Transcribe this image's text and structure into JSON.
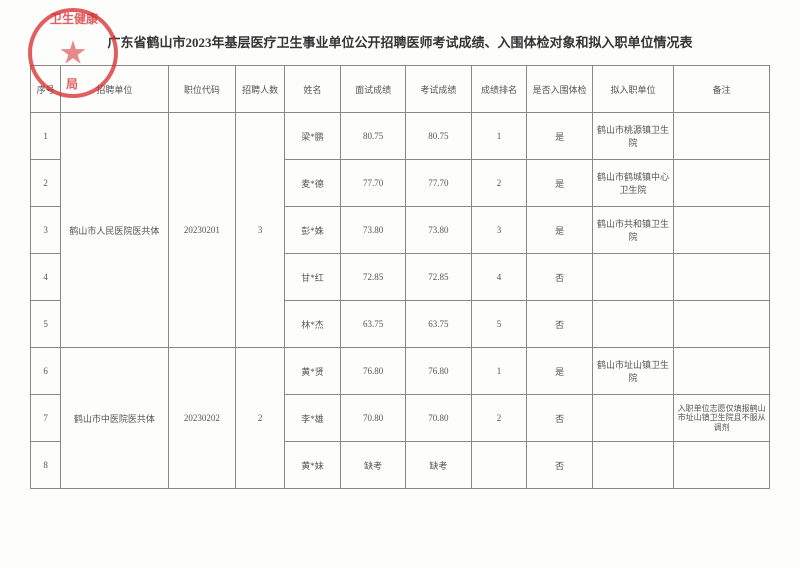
{
  "title": "广东省鹤山市2023年基层医疗卫生事业单位公开招聘医师考试成绩、入围体检对象和拟入职单位情况表",
  "headers": {
    "seq": "序号",
    "org": "招聘单位",
    "code": "职位代码",
    "num": "招聘人数",
    "name": "姓名",
    "score1": "面试成绩",
    "score2": "考试成绩",
    "rank": "成绩排名",
    "pass": "是否入围体检",
    "unit": "拟入职单位",
    "note": "备注"
  },
  "groups": [
    {
      "org": "鹤山市人民医院医共体",
      "code": "20230201",
      "num": "3",
      "rows": [
        {
          "seq": "1",
          "name": "梁*鹏",
          "s1": "80.75",
          "s2": "80.75",
          "rank": "1",
          "pass": "是",
          "unit": "鹤山市桃源镇卫生院",
          "note": ""
        },
        {
          "seq": "2",
          "name": "麦*德",
          "s1": "77.70",
          "s2": "77.70",
          "rank": "2",
          "pass": "是",
          "unit": "鹤山市鹤城镇中心卫生院",
          "note": ""
        },
        {
          "seq": "3",
          "name": "彭*姝",
          "s1": "73.80",
          "s2": "73.80",
          "rank": "3",
          "pass": "是",
          "unit": "鹤山市共和镇卫生院",
          "note": ""
        },
        {
          "seq": "4",
          "name": "甘*红",
          "s1": "72.85",
          "s2": "72.85",
          "rank": "4",
          "pass": "否",
          "unit": "",
          "note": ""
        },
        {
          "seq": "5",
          "name": "林*杰",
          "s1": "63.75",
          "s2": "63.75",
          "rank": "5",
          "pass": "否",
          "unit": "",
          "note": ""
        }
      ]
    },
    {
      "org": "鹤山市中医院医共体",
      "code": "20230202",
      "num": "2",
      "rows": [
        {
          "seq": "6",
          "name": "黄*贤",
          "s1": "76.80",
          "s2": "76.80",
          "rank": "1",
          "pass": "是",
          "unit": "鹤山市址山镇卫生院",
          "note": ""
        },
        {
          "seq": "7",
          "name": "李*雄",
          "s1": "70.80",
          "s2": "70.80",
          "rank": "2",
          "pass": "否",
          "unit": "",
          "note": "入职单位志愿仅填报鹤山市址山镇卫生院且不服从调剂"
        },
        {
          "seq": "8",
          "name": "黄*妹",
          "s1": "缺考",
          "s2": "缺考",
          "rank": "",
          "pass": "否",
          "unit": "",
          "note": ""
        }
      ]
    }
  ],
  "stamp_text": {
    "top": "卫生健康",
    "bottom": "局"
  }
}
